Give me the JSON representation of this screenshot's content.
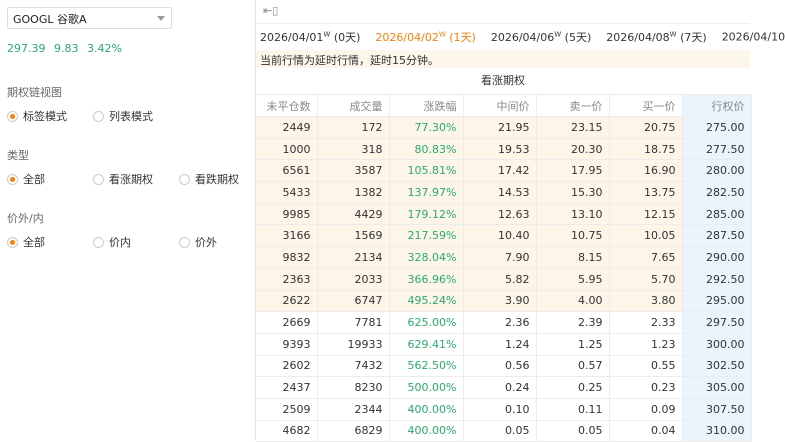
{
  "symbol_select": {
    "value": "GOOGL 谷歌A"
  },
  "quote": {
    "price": "297.39",
    "change": "9.83",
    "change_pct": "3.42%"
  },
  "filters": [
    {
      "label": "期权链视图",
      "options": [
        "标签模式",
        "列表模式"
      ],
      "selected": 0
    },
    {
      "label": "类型",
      "options": [
        "全部",
        "看涨期权",
        "看跌期权"
      ],
      "selected": 0
    },
    {
      "label": "价外/内",
      "options": [
        "全部",
        "价内",
        "价外"
      ],
      "selected": 0
    }
  ],
  "colors": {
    "accent": "#f7810b",
    "up": "#2aaa6a",
    "itm_row": "#fdf5e8",
    "strike_col": "#eaf4fd"
  },
  "expiries": [
    {
      "date": "2026/04/01",
      "tag": "W",
      "days": "(0天)"
    },
    {
      "date": "2026/04/02",
      "tag": "W",
      "days": "(1天)",
      "active": true
    },
    {
      "date": "2026/04/06",
      "tag": "W",
      "days": "(5天)"
    },
    {
      "date": "2026/04/08",
      "tag": "W",
      "days": "(7天)"
    },
    {
      "date": "2026/04/10",
      "tag": "",
      "days": ""
    }
  ],
  "notice": "当前行情为延时行情，延时15分钟。",
  "table_title": "看涨期权",
  "columns": [
    "未平仓数",
    "成交量",
    "涨跌幅",
    "中间价",
    "卖一价",
    "买一价",
    "行权价"
  ],
  "rows": [
    [
      "2449",
      "172",
      "77.30%",
      "21.95",
      "23.15",
      "20.75",
      "275.00"
    ],
    [
      "1000",
      "318",
      "80.83%",
      "19.53",
      "20.30",
      "18.75",
      "277.50"
    ],
    [
      "6561",
      "3587",
      "105.81%",
      "17.42",
      "17.95",
      "16.90",
      "280.00"
    ],
    [
      "5433",
      "1382",
      "137.97%",
      "14.53",
      "15.30",
      "13.75",
      "282.50"
    ],
    [
      "9985",
      "4429",
      "179.12%",
      "12.63",
      "13.10",
      "12.15",
      "285.00"
    ],
    [
      "3166",
      "1569",
      "217.59%",
      "10.40",
      "10.75",
      "10.05",
      "287.50"
    ],
    [
      "9832",
      "2134",
      "328.04%",
      "7.90",
      "8.15",
      "7.65",
      "290.00"
    ],
    [
      "2363",
      "2033",
      "366.96%",
      "5.82",
      "5.95",
      "5.70",
      "292.50"
    ],
    [
      "2622",
      "6747",
      "495.24%",
      "3.90",
      "4.00",
      "3.80",
      "295.00"
    ],
    [
      "2669",
      "7781",
      "625.00%",
      "2.36",
      "2.39",
      "2.33",
      "297.50"
    ],
    [
      "9393",
      "19933",
      "629.41%",
      "1.24",
      "1.25",
      "1.23",
      "300.00"
    ],
    [
      "2602",
      "7432",
      "562.50%",
      "0.56",
      "0.57",
      "0.55",
      "302.50"
    ],
    [
      "2437",
      "8230",
      "500.00%",
      "0.24",
      "0.25",
      "0.23",
      "305.00"
    ],
    [
      "2509",
      "2344",
      "400.00%",
      "0.10",
      "0.11",
      "0.09",
      "307.50"
    ],
    [
      "4682",
      "6829",
      "400.00%",
      "0.05",
      "0.05",
      "0.04",
      "310.00"
    ]
  ],
  "itm_rows": 9
}
